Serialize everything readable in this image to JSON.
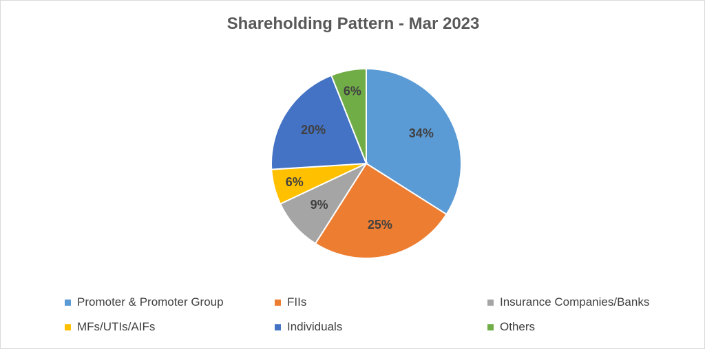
{
  "chart_data": {
    "type": "pie",
    "title": "Shareholding Pattern - Mar 2023",
    "categories": [
      "Promoter & Promoter Group",
      "FIIs",
      "Insurance Companies/Banks",
      "MFs/UTIs/AIFs",
      "Individuals",
      "Others"
    ],
    "values": [
      34,
      25,
      9,
      6,
      20,
      6
    ],
    "data_labels": [
      "34%",
      "25%",
      "9%",
      "6%",
      "20%",
      "6%"
    ],
    "colors": [
      "#5B9BD5",
      "#ED7D31",
      "#A5A5A5",
      "#FFC000",
      "#4472C4",
      "#70AD47"
    ],
    "legend_position": "bottom"
  }
}
